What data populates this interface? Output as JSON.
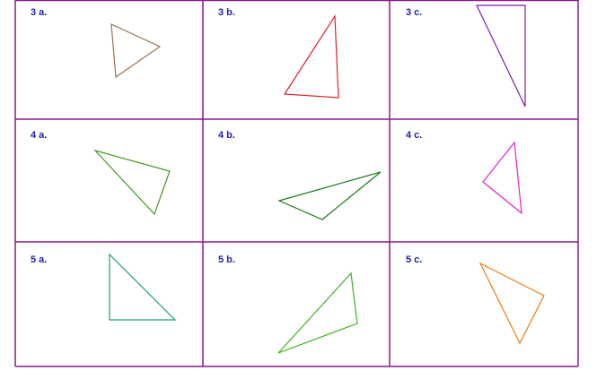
{
  "colors": {
    "grid_line": "#8B1A8B",
    "label": "#1F1FB4",
    "background": "#ffffff"
  },
  "cells": [
    {
      "label": "3 a.",
      "triangle_color": "#A0704A"
    },
    {
      "label": "3 b.",
      "triangle_color": "#E02020"
    },
    {
      "label": "3 c.",
      "triangle_color": "#7A1FA8"
    },
    {
      "label": "4 a.",
      "triangle_color": "#3E9A1E"
    },
    {
      "label": "4 b.",
      "triangle_color": "#1F7A1F"
    },
    {
      "label": "4 c.",
      "triangle_color": "#E020C8"
    },
    {
      "label": "5 a.",
      "triangle_color": "#1FA070"
    },
    {
      "label": "5 b.",
      "triangle_color": "#3EB020"
    },
    {
      "label": "5 c.",
      "triangle_color": "#F07A10"
    }
  ]
}
